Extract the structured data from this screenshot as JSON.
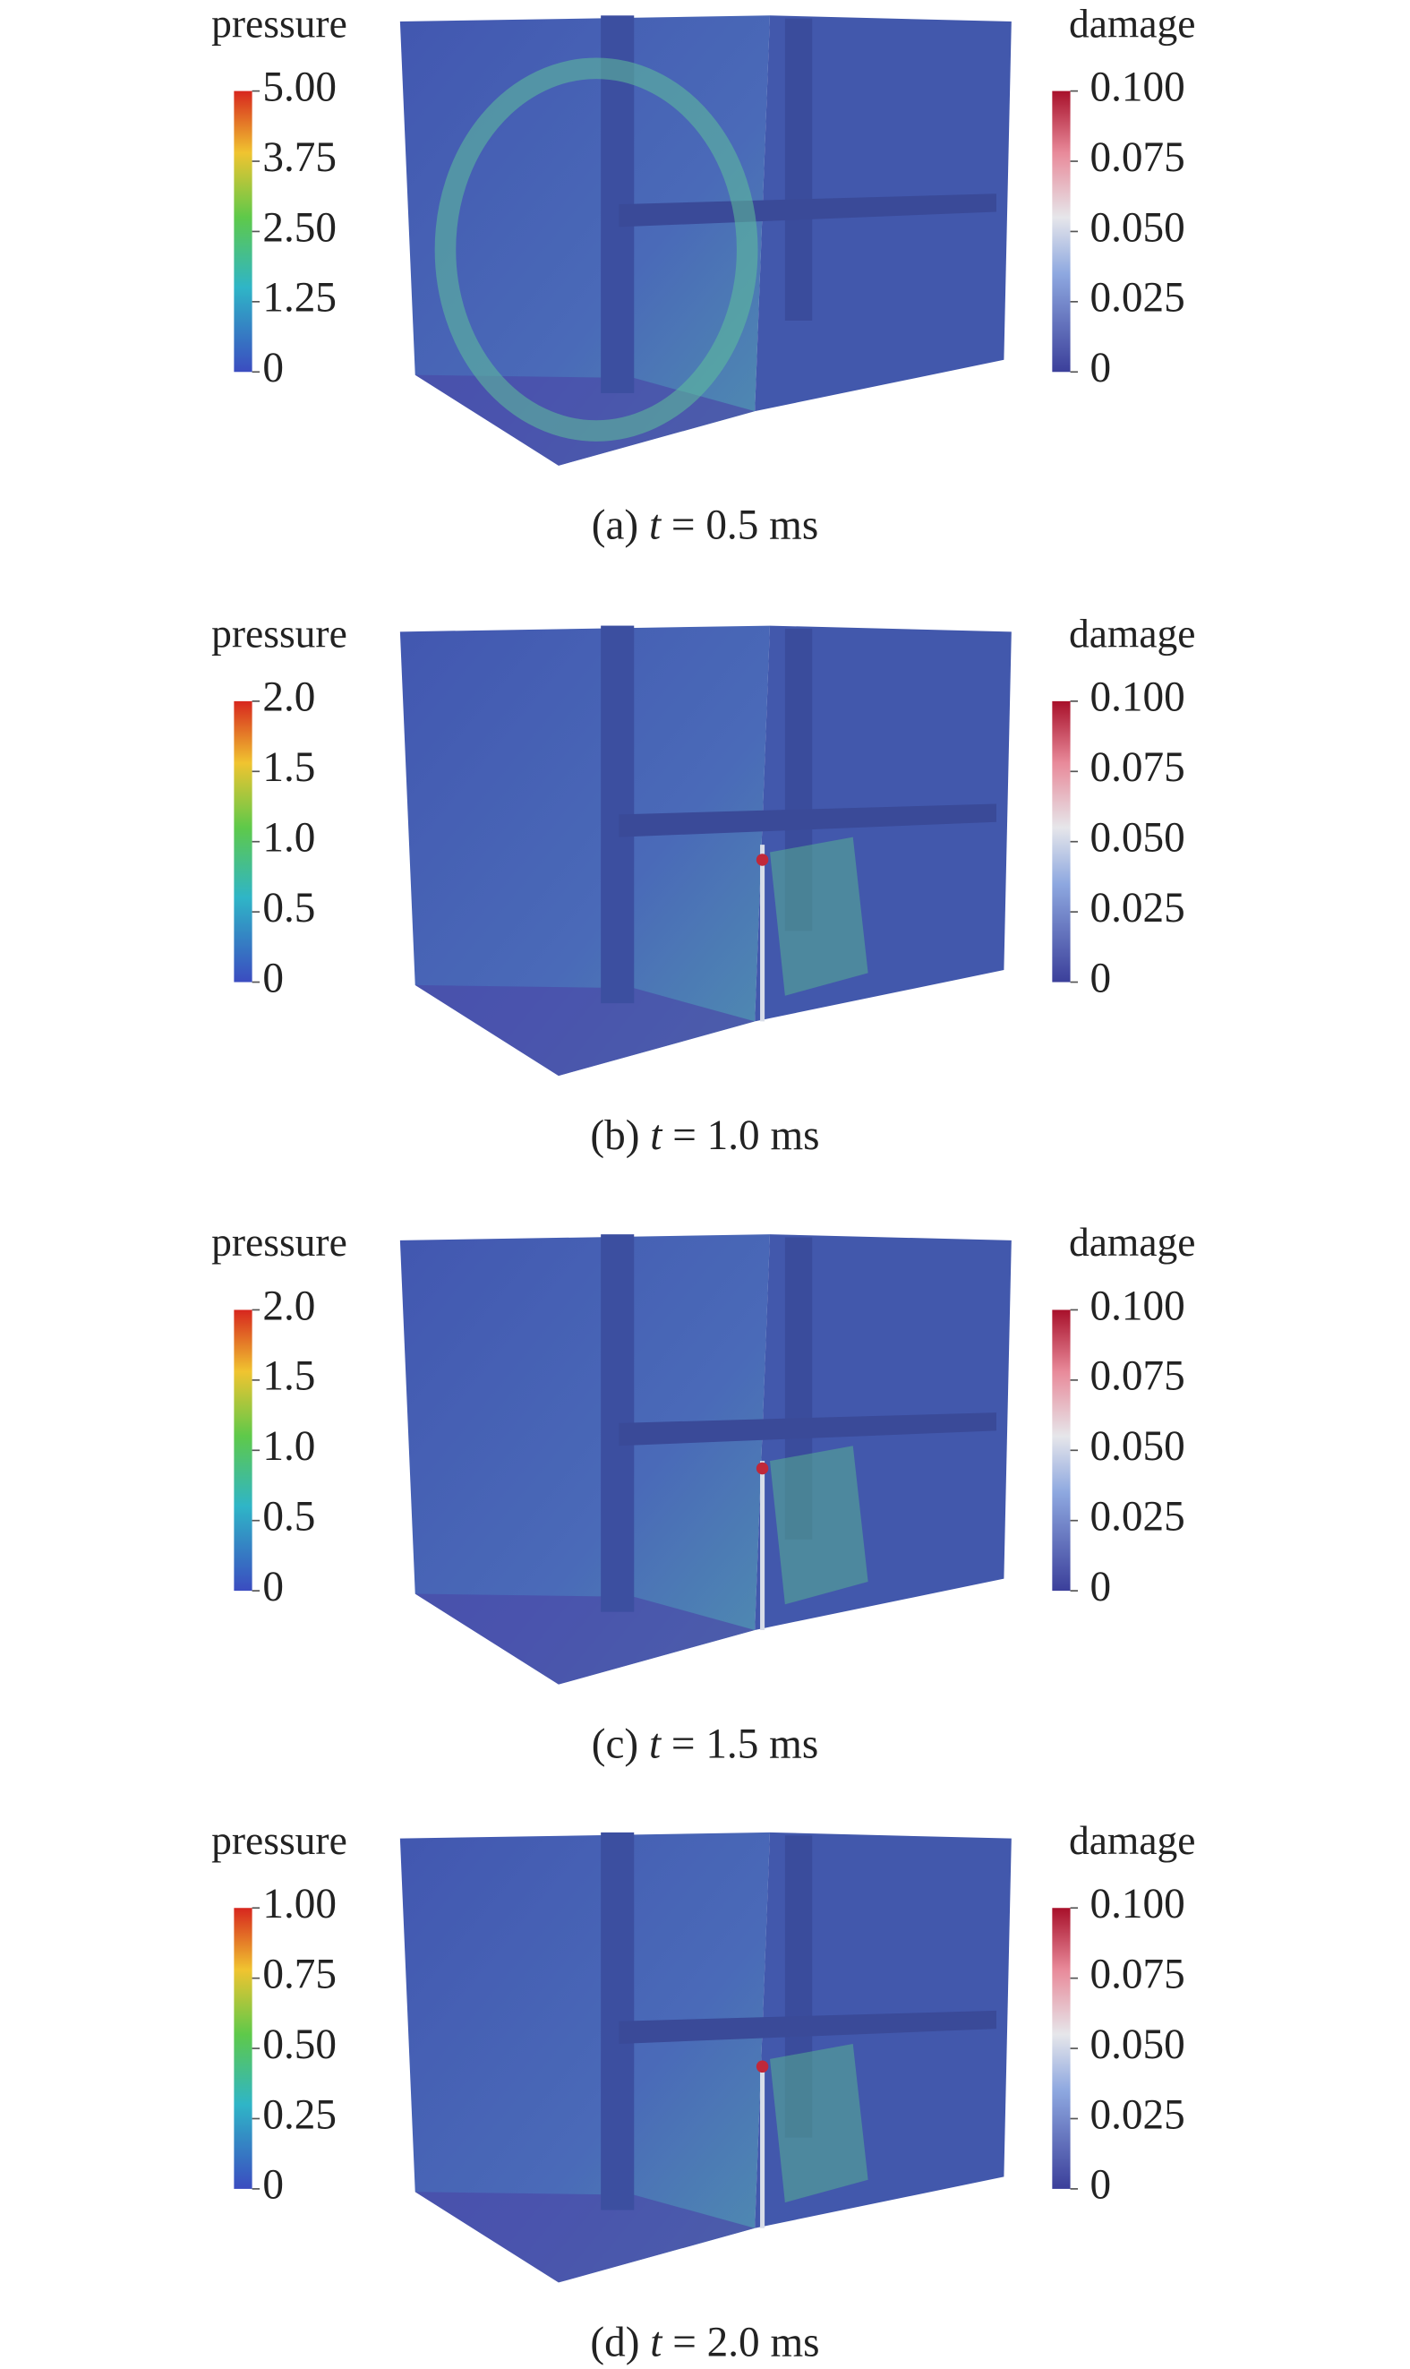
{
  "panels": [
    {
      "pressure_label": "pressure",
      "pressure_ticks": [
        "5.00",
        "3.75",
        "2.50",
        "1.25",
        "0"
      ],
      "damage_label": "damage",
      "damage_ticks": [
        "0.100",
        "0.075",
        "0.050",
        "0.025",
        "0"
      ],
      "caption": {
        "prefix": "(a)",
        "var": "t",
        "rest": "= 0.5 ms"
      }
    },
    {
      "pressure_label": "pressure",
      "pressure_ticks": [
        "2.0",
        "1.5",
        "1.0",
        "0.5",
        "0"
      ],
      "damage_label": "damage",
      "damage_ticks": [
        "0.100",
        "0.075",
        "0.050",
        "0.025",
        "0"
      ],
      "caption": {
        "prefix": "(b)",
        "var": "t",
        "rest": "= 1.0 ms"
      }
    },
    {
      "pressure_label": "pressure",
      "pressure_ticks": [
        "2.0",
        "1.5",
        "1.0",
        "0.5",
        "0"
      ],
      "damage_label": "damage",
      "damage_ticks": [
        "0.100",
        "0.075",
        "0.050",
        "0.025",
        "0"
      ],
      "caption": {
        "prefix": "(c)",
        "var": "t",
        "rest": "= 1.5 ms"
      }
    },
    {
      "pressure_label": "pressure",
      "pressure_ticks": [
        "1.00",
        "0.75",
        "0.50",
        "0.25",
        "0"
      ],
      "damage_label": "damage",
      "damage_ticks": [
        "0.100",
        "0.075",
        "0.050",
        "0.025",
        "0"
      ],
      "caption": {
        "prefix": "(d)",
        "var": "t",
        "rest": "= 2.0 ms"
      }
    }
  ]
}
